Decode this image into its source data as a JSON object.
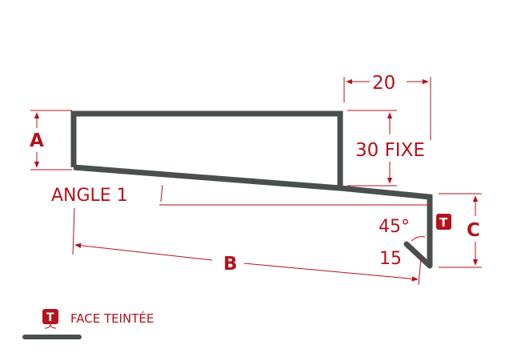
{
  "colors": {
    "profile": "#4a4f4d",
    "dimension": "#b5121b",
    "badge_text": "#ffffff",
    "background": "#ffffff"
  },
  "dimensions": {
    "top_width": "20",
    "fixed_height": "30 FIXE",
    "label_a": "A",
    "label_b": "B",
    "label_c": "C",
    "angle_label": "ANGLE 1",
    "angle_45": "45°",
    "return_15": "15"
  },
  "badge": {
    "letter": "T"
  },
  "legend": {
    "badge_letter": "T",
    "text": "FACE TEINTÉE"
  }
}
